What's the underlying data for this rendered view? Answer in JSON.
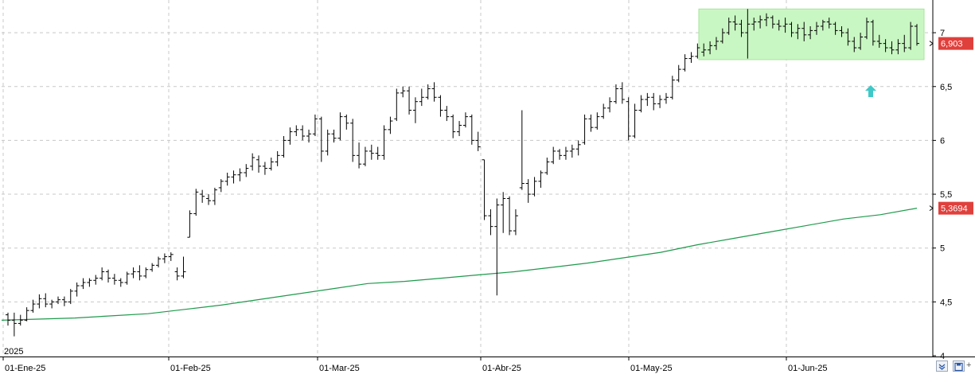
{
  "chart_data": {
    "type": "ohlc",
    "year_label": "2025",
    "x_ticks": [
      "01-Ene-25",
      "01-Feb-25",
      "01-Mar-25",
      "01-Abr-25",
      "01-May-25",
      "01-Jun-25"
    ],
    "y_ticks": [
      "4",
      "4,5",
      "5",
      "5,5",
      "6",
      "6,5",
      "7"
    ],
    "ylim": [
      4,
      7.25
    ],
    "grid": true,
    "price_labels": {
      "last_close": "6,903",
      "moving_average": "5,3694"
    },
    "colors": {
      "bars": "#000000",
      "moving_average": "#1f9a4c",
      "highlight": "#c9f7c3",
      "arrow": "#3fc8c8",
      "label_bg": "#e0403c",
      "grid": "#c8c8c8"
    },
    "annotations": {
      "highlight_zone": [
        6.75,
        7.22
      ],
      "arrow": "up-arrow"
    },
    "series": [
      {
        "type": "ohlc",
        "bars": [
          [
            4.38,
            4.4,
            4.28,
            4.33
          ],
          [
            4.33,
            4.4,
            4.18,
            4.3
          ],
          [
            4.3,
            4.38,
            4.28,
            4.33
          ],
          [
            4.33,
            4.45,
            4.32,
            4.42
          ],
          [
            4.42,
            4.52,
            4.4,
            4.48
          ],
          [
            4.48,
            4.57,
            4.44,
            4.53
          ],
          [
            4.53,
            4.58,
            4.45,
            4.48
          ],
          [
            4.48,
            4.52,
            4.44,
            4.5
          ],
          [
            4.5,
            4.55,
            4.48,
            4.52
          ],
          [
            4.52,
            4.55,
            4.46,
            4.5
          ],
          [
            4.5,
            4.62,
            4.48,
            4.6
          ],
          [
            4.6,
            4.68,
            4.55,
            4.65
          ],
          [
            4.65,
            4.72,
            4.62,
            4.68
          ],
          [
            4.68,
            4.72,
            4.64,
            4.7
          ],
          [
            4.7,
            4.75,
            4.66,
            4.72
          ],
          [
            4.72,
            4.82,
            4.7,
            4.78
          ],
          [
            4.78,
            4.8,
            4.68,
            4.72
          ],
          [
            4.72,
            4.76,
            4.66,
            4.7
          ],
          [
            4.7,
            4.72,
            4.64,
            4.68
          ],
          [
            4.68,
            4.78,
            4.66,
            4.76
          ],
          [
            4.76,
            4.82,
            4.72,
            4.78
          ],
          [
            4.78,
            4.84,
            4.7,
            4.74
          ],
          [
            4.74,
            4.82,
            4.72,
            4.8
          ],
          [
            4.8,
            4.86,
            4.78,
            4.84
          ],
          [
            4.84,
            4.92,
            4.82,
            4.9
          ],
          [
            4.9,
            4.95,
            4.86,
            4.92
          ],
          [
            4.92,
            4.96,
            4.88,
            4.94
          ],
          [
            4.78,
            4.82,
            4.7,
            4.74
          ],
          [
            4.74,
            4.92,
            4.72,
            4.78
          ],
          [
            5.1,
            5.35,
            5.1,
            5.32
          ],
          [
            5.32,
            5.55,
            5.3,
            5.52
          ],
          [
            5.5,
            5.54,
            5.42,
            5.48
          ],
          [
            5.46,
            5.5,
            5.4,
            5.44
          ],
          [
            5.44,
            5.56,
            5.4,
            5.54
          ],
          [
            5.56,
            5.64,
            5.52,
            5.62
          ],
          [
            5.62,
            5.7,
            5.58,
            5.66
          ],
          [
            5.66,
            5.72,
            5.6,
            5.68
          ],
          [
            5.68,
            5.74,
            5.62,
            5.7
          ],
          [
            5.7,
            5.78,
            5.66,
            5.74
          ],
          [
            5.76,
            5.88,
            5.72,
            5.84
          ],
          [
            5.82,
            5.86,
            5.7,
            5.76
          ],
          [
            5.76,
            5.8,
            5.68,
            5.74
          ],
          [
            5.74,
            5.84,
            5.72,
            5.8
          ],
          [
            5.8,
            5.9,
            5.76,
            5.86
          ],
          [
            5.86,
            6.04,
            5.84,
            6.0
          ],
          [
            6.0,
            6.12,
            5.96,
            6.08
          ],
          [
            6.08,
            6.14,
            6.04,
            6.1
          ],
          [
            6.1,
            6.14,
            6.0,
            6.04
          ],
          [
            6.04,
            6.1,
            5.98,
            6.06
          ],
          [
            6.06,
            6.24,
            6.04,
            6.2
          ],
          [
            6.2,
            6.22,
            5.8,
            5.9
          ],
          [
            5.9,
            6.1,
            5.86,
            6.06
          ],
          [
            6.06,
            6.1,
            5.98,
            6.02
          ],
          [
            6.02,
            6.26,
            6.0,
            6.22
          ],
          [
            6.22,
            6.24,
            6.1,
            6.16
          ],
          [
            6.16,
            6.2,
            5.8,
            5.86
          ],
          [
            5.86,
            5.98,
            5.74,
            5.78
          ],
          [
            5.78,
            5.94,
            5.76,
            5.9
          ],
          [
            5.9,
            5.96,
            5.82,
            5.88
          ],
          [
            5.88,
            5.94,
            5.82,
            5.86
          ],
          [
            5.86,
            6.14,
            5.82,
            6.1
          ],
          [
            6.1,
            6.22,
            6.06,
            6.18
          ],
          [
            6.2,
            6.48,
            6.18,
            6.44
          ],
          [
            6.44,
            6.5,
            6.4,
            6.46
          ],
          [
            6.46,
            6.5,
            6.24,
            6.28
          ],
          [
            6.28,
            6.4,
            6.16,
            6.36
          ],
          [
            6.36,
            6.48,
            6.32,
            6.4
          ],
          [
            6.4,
            6.52,
            6.38,
            6.48
          ],
          [
            6.48,
            6.54,
            6.36,
            6.4
          ],
          [
            6.4,
            6.42,
            6.22,
            6.28
          ],
          [
            6.28,
            6.32,
            6.18,
            6.22
          ],
          [
            6.22,
            6.24,
            6.02,
            6.08
          ],
          [
            6.08,
            6.18,
            6.04,
            6.14
          ],
          [
            6.14,
            6.26,
            6.12,
            6.22
          ],
          [
            6.22,
            6.24,
            5.96,
            6.0
          ],
          [
            6.0,
            6.08,
            5.9,
            5.94
          ],
          [
            5.82,
            5.82,
            5.26,
            5.3
          ],
          [
            5.3,
            5.36,
            5.12,
            5.2
          ],
          [
            5.2,
            5.46,
            4.56,
            5.4
          ],
          [
            5.4,
            5.52,
            5.14,
            5.46
          ],
          [
            5.46,
            5.48,
            5.12,
            5.16
          ],
          [
            5.16,
            5.36,
            5.12,
            5.3
          ],
          [
            5.56,
            6.28,
            5.54,
            5.6
          ],
          [
            5.6,
            5.64,
            5.42,
            5.5
          ],
          [
            5.5,
            5.66,
            5.48,
            5.62
          ],
          [
            5.62,
            5.72,
            5.56,
            5.7
          ],
          [
            5.7,
            5.84,
            5.68,
            5.8
          ],
          [
            5.8,
            5.94,
            5.78,
            5.9
          ],
          [
            5.9,
            5.92,
            5.82,
            5.86
          ],
          [
            5.86,
            5.94,
            5.82,
            5.9
          ],
          [
            5.9,
            5.96,
            5.84,
            5.92
          ],
          [
            5.92,
            6.0,
            5.86,
            5.96
          ],
          [
            5.98,
            6.24,
            5.96,
            6.2
          ],
          [
            6.2,
            6.24,
            6.08,
            6.12
          ],
          [
            6.12,
            6.26,
            6.1,
            6.22
          ],
          [
            6.22,
            6.34,
            6.2,
            6.3
          ],
          [
            6.3,
            6.4,
            6.26,
            6.36
          ],
          [
            6.36,
            6.52,
            6.34,
            6.48
          ],
          [
            6.48,
            6.54,
            6.34,
            6.38
          ],
          [
            6.36,
            6.4,
            6.0,
            6.04
          ],
          [
            6.04,
            6.34,
            6.02,
            6.28
          ],
          [
            6.28,
            6.42,
            6.26,
            6.38
          ],
          [
            6.38,
            6.44,
            6.32,
            6.4
          ],
          [
            6.4,
            6.44,
            6.28,
            6.34
          ],
          [
            6.34,
            6.42,
            6.3,
            6.38
          ],
          [
            6.38,
            6.44,
            6.34,
            6.4
          ],
          [
            6.4,
            6.6,
            6.38,
            6.56
          ],
          [
            6.56,
            6.7,
            6.54,
            6.66
          ],
          [
            6.66,
            6.8,
            6.64,
            6.76
          ],
          [
            6.76,
            6.82,
            6.72,
            6.78
          ],
          [
            6.78,
            6.9,
            6.76,
            6.86
          ],
          [
            6.82,
            6.9,
            6.78,
            6.84
          ],
          [
            6.84,
            6.92,
            6.8,
            6.88
          ],
          [
            6.88,
            6.96,
            6.84,
            6.92
          ],
          [
            6.92,
            7.04,
            6.9,
            7.0
          ],
          [
            7.0,
            7.14,
            6.98,
            7.1
          ],
          [
            7.1,
            7.16,
            7.02,
            7.08
          ],
          [
            7.08,
            7.12,
            6.96,
            7.0
          ],
          [
            7.0,
            7.22,
            6.76,
            7.08
          ],
          [
            7.08,
            7.14,
            7.02,
            7.1
          ],
          [
            7.1,
            7.16,
            7.04,
            7.12
          ],
          [
            7.12,
            7.18,
            7.06,
            7.14
          ],
          [
            7.14,
            7.16,
            7.04,
            7.08
          ],
          [
            7.08,
            7.12,
            7.02,
            7.06
          ],
          [
            7.06,
            7.14,
            7.0,
            7.08
          ],
          [
            7.08,
            7.1,
            6.96,
            7.0
          ],
          [
            7.0,
            7.08,
            6.94,
            7.04
          ],
          [
            7.04,
            7.1,
            6.92,
            6.98
          ],
          [
            6.98,
            7.06,
            6.94,
            7.02
          ],
          [
            7.02,
            7.1,
            6.98,
            7.06
          ],
          [
            7.06,
            7.12,
            7.02,
            7.1
          ],
          [
            7.1,
            7.14,
            7.04,
            7.08
          ],
          [
            7.08,
            7.1,
            6.98,
            7.02
          ],
          [
            7.02,
            7.06,
            6.96,
            7.0
          ],
          [
            7.0,
            7.04,
            6.88,
            6.92
          ],
          [
            6.92,
            6.96,
            6.82,
            6.86
          ],
          [
            6.86,
            7.0,
            6.84,
            6.96
          ],
          [
            6.96,
            7.14,
            6.94,
            7.1
          ],
          [
            7.1,
            7.12,
            6.88,
            6.92
          ],
          [
            6.92,
            6.98,
            6.86,
            6.9
          ],
          [
            6.9,
            6.94,
            6.82,
            6.86
          ],
          [
            6.86,
            6.92,
            6.8,
            6.84
          ],
          [
            6.84,
            6.94,
            6.8,
            6.9
          ],
          [
            6.9,
            6.98,
            6.82,
            6.86
          ],
          [
            6.86,
            7.1,
            6.84,
            7.06
          ],
          [
            7.06,
            7.08,
            6.88,
            6.9
          ]
        ]
      },
      {
        "type": "line",
        "values": [
          4.33,
          4.34,
          4.35,
          4.37,
          4.39,
          4.43,
          4.47,
          4.52,
          4.57,
          4.62,
          4.67,
          4.69,
          4.72,
          4.75,
          4.78,
          4.82,
          4.86,
          4.91,
          4.96,
          5.03,
          5.09,
          5.15,
          5.21,
          5.27,
          5.31,
          5.37
        ]
      }
    ]
  }
}
